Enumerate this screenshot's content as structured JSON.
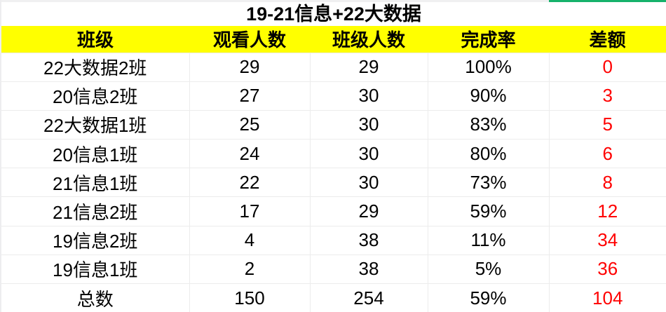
{
  "title": "19-21信息+22大数据",
  "table": {
    "columns": [
      "班级",
      "观看人数",
      "班级人数",
      "完成率",
      "差额"
    ],
    "column_keys": [
      "class-name",
      "viewers",
      "class-size",
      "completion-rate",
      "difference"
    ],
    "rows": [
      [
        "22大数据2班",
        "29",
        "29",
        "100%",
        "0"
      ],
      [
        "20信息2班",
        "27",
        "30",
        "90%",
        "3"
      ],
      [
        "22大数据1班",
        "25",
        "30",
        "83%",
        "5"
      ],
      [
        "20信息1班",
        "24",
        "30",
        "80%",
        "6"
      ],
      [
        "21信息1班",
        "22",
        "30",
        "73%",
        "8"
      ],
      [
        "21信息2班",
        "17",
        "29",
        "59%",
        "12"
      ],
      [
        "19信息2班",
        "4",
        "38",
        "11%",
        "34"
      ],
      [
        "19信息1班",
        "2",
        "38",
        "5%",
        "36"
      ],
      [
        "总数",
        "150",
        "254",
        "59%",
        "104"
      ]
    ]
  },
  "colors": {
    "header_bg": "#FFFF00",
    "difference_text": "#FF0000",
    "gridline": "#ECECEC",
    "top_strip_gray": "#F0F0F1",
    "top_strip_green": "#16B26B",
    "text": "#000000"
  }
}
